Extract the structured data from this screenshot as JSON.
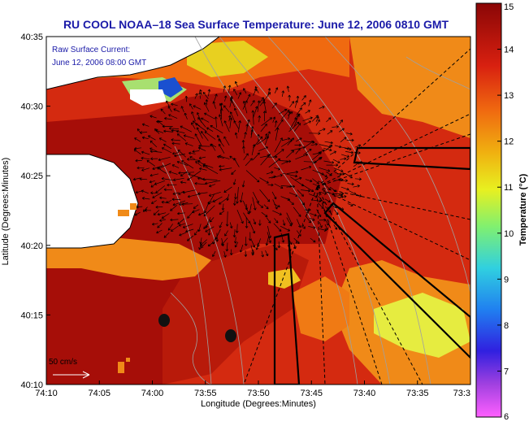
{
  "title": "RU COOL  NOAA–18  Sea Surface Temperature:  June 12, 2006 0810 GMT",
  "inset_label_1": "Raw Surface Current:",
  "inset_label_2": "June 12, 2006 08:00 GMT",
  "scale_label": "50 cm/s",
  "colors": {
    "title": "#1a1aa8",
    "land": "#ffffff",
    "sst_background": "#d42a10",
    "sst_warm": "#b01008",
    "sst_coastal_dark": "#9a0c06",
    "sst_cool": "#f0a020",
    "sst_coolest": "#e8f040",
    "sst_coldest": "#1a50d0",
    "contour": "#a0a0a0",
    "vectors": "#000000",
    "sector_lines": "#000000"
  },
  "chart_data": {
    "type": "heatmap",
    "title": "RU COOL  NOAA–18  Sea Surface Temperature:  June 12, 2006 0810 GMT",
    "xlabel": "Longitude (Degrees:Minutes)",
    "ylabel": "Latitude (Degrees:Minutes)",
    "x_ticks": [
      "74:10",
      "74:05",
      "74:00",
      "73:55",
      "73:50",
      "73:45",
      "73:40",
      "73:35",
      "73:3"
    ],
    "y_ticks": [
      "40:10",
      "40:15",
      "40:20",
      "40:25",
      "40:30",
      "40:35"
    ],
    "xlim_minutes_west": [
      -74.1667,
      -73.5
    ],
    "ylim_lat": [
      40.1667,
      40.5833
    ],
    "colorbar": {
      "label": "Temperature (°C)",
      "min": 6,
      "max": 15,
      "ticks": [
        "15",
        "14",
        "13",
        "12",
        "11",
        "10",
        "9",
        "8",
        "7",
        "6"
      ],
      "stops": [
        "#ff60ff",
        "#7030d0",
        "#1020e0",
        "#20a0f0",
        "#30e0d0",
        "#90f060",
        "#f0f020",
        "#f0b010",
        "#f06010",
        "#d01010",
        "#900808"
      ]
    },
    "markers": [
      {
        "label": "dot-1",
        "lon": -73.98,
        "lat": 40.243
      },
      {
        "label": "dot-2",
        "lon": -73.88,
        "lat": 40.228
      }
    ],
    "vectors": "dense field of surface current arrows over the central region",
    "grid": false
  }
}
